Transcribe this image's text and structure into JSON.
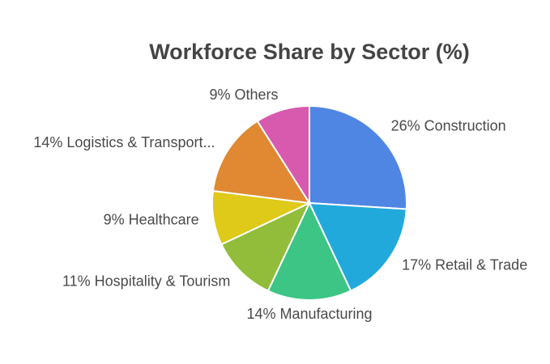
{
  "chart_data": {
    "type": "pie",
    "title": "Workforce Share by Sector (%)",
    "values": [
      26,
      17,
      14,
      11,
      9,
      14,
      9
    ],
    "value_labels": [
      "26% Construction",
      "17% Retail & Trade",
      "14% Manufacturing",
      "11% Hospitality & Tourism",
      "9% Healthcare",
      "14% Logistics & Transport...",
      "9% Others"
    ],
    "colors": [
      "#4f86e4",
      "#22a9dc",
      "#3cc585",
      "#92bd3a",
      "#dfc919",
      "#e08832",
      "#d85aaf"
    ]
  }
}
